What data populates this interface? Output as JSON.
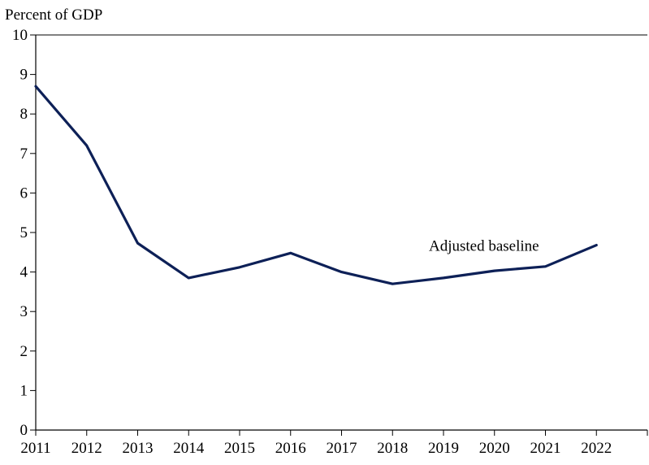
{
  "chart_data": {
    "type": "line",
    "title": "",
    "ylabel": "Percent of GDP",
    "xlabel": "",
    "x": [
      2011,
      2012,
      2013,
      2014,
      2015,
      2016,
      2017,
      2018,
      2019,
      2020,
      2021,
      2022
    ],
    "xlim": [
      2011,
      2023
    ],
    "ylim": [
      0,
      10
    ],
    "yticks": [
      0,
      1,
      2,
      3,
      4,
      5,
      6,
      7,
      8,
      9,
      10
    ],
    "grid": false,
    "legend": "none",
    "series": [
      {
        "name": "Adjusted baseline",
        "color": "#0d2057",
        "values": [
          8.7,
          7.2,
          4.73,
          3.85,
          4.12,
          4.48,
          4.0,
          3.7,
          3.85,
          4.03,
          4.14,
          4.68
        ]
      }
    ],
    "annotations": [
      {
        "text": "Adjusted baseline",
        "x": 2019,
        "y": 4.5
      }
    ]
  }
}
